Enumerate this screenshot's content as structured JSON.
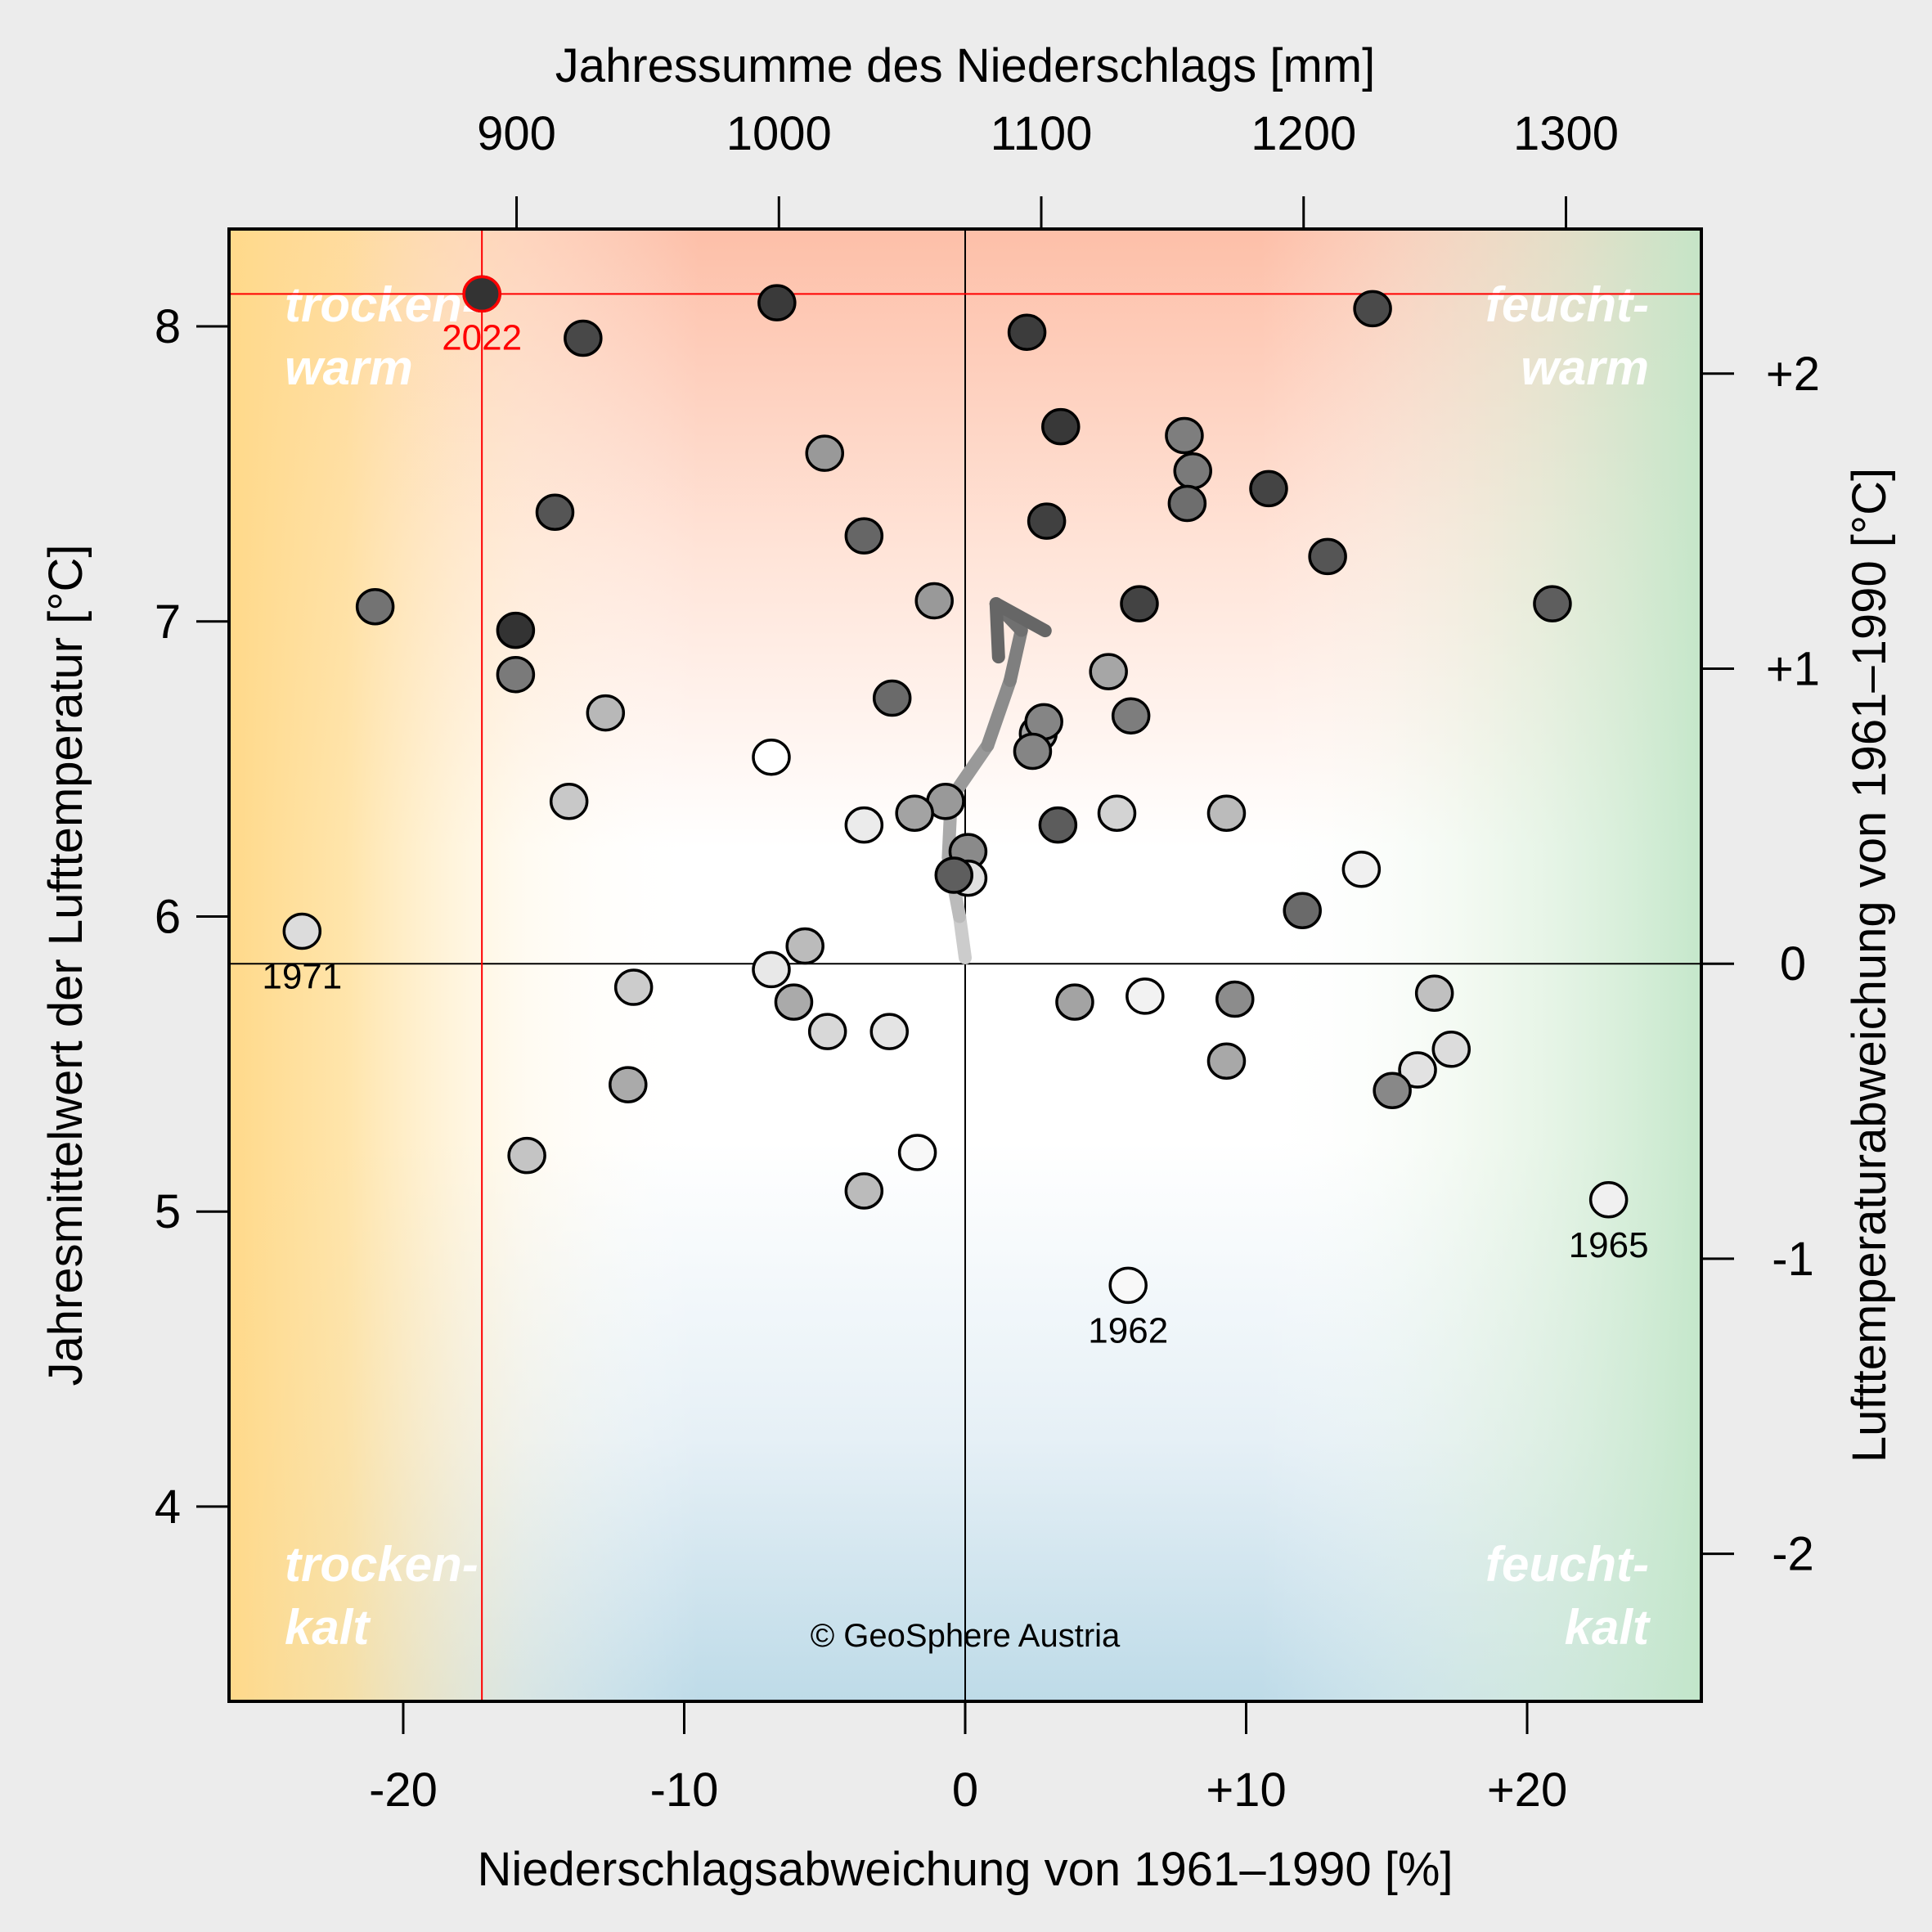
{
  "chart_data": {
    "type": "scatter",
    "xlabel_bottom": "Niederschlagsabweichung von 1961–1990 [%]",
    "xlabel_top": "Jahressumme des Niederschlags [mm]",
    "ylabel_left": "Jahresmittelwert der Lufttemperatur [°C]",
    "ylabel_right": "Lufttemperaturabweichung von 1961–1990 [°C]",
    "xlim": [
      -26.2,
      26.2
    ],
    "ylim": [
      3.34,
      8.33
    ],
    "reference": {
      "precip_mm": 1071,
      "temp_c": 5.84
    },
    "x_ticks": [
      {
        "value": -20,
        "label": "-20"
      },
      {
        "value": -10,
        "label": "-10"
      },
      {
        "value": 0,
        "label": "0"
      },
      {
        "value": 10,
        "label": "+10"
      },
      {
        "value": 20,
        "label": "+20"
      }
    ],
    "y_ticks": [
      {
        "value": 4,
        "label": "4"
      },
      {
        "value": 5,
        "label": "5"
      },
      {
        "value": 6,
        "label": "6"
      },
      {
        "value": 7,
        "label": "7"
      },
      {
        "value": 8,
        "label": "8"
      }
    ],
    "top_ticks": [
      {
        "value": 900,
        "label": "900"
      },
      {
        "value": 1000,
        "label": "1000"
      },
      {
        "value": 1100,
        "label": "1100"
      },
      {
        "value": 1200,
        "label": "1200"
      },
      {
        "value": 1300,
        "label": "1300"
      }
    ],
    "right_ticks": [
      {
        "value": 2,
        "label": "+2"
      },
      {
        "value": 1,
        "label": "+1"
      },
      {
        "value": 0,
        "label": "0"
      },
      {
        "value": -1,
        "label": "-1"
      },
      {
        "value": -2,
        "label": "-2"
      }
    ],
    "quadrant_labels": {
      "top_left": [
        "trocken-",
        "warm"
      ],
      "top_right": [
        "feucht-",
        "warm"
      ],
      "bottom_left": [
        "trocken-",
        "kalt"
      ],
      "bottom_right": [
        "feucht-",
        "kalt"
      ]
    },
    "highlight": {
      "year": "2022",
      "x": -17.2,
      "y": 8.11,
      "color": "#ff0000"
    },
    "annotations": [
      {
        "year": "1971",
        "x": -23.6,
        "y": 5.95
      },
      {
        "year": "1965",
        "x": 22.9,
        "y": 5.04
      },
      {
        "year": "1962",
        "x": 5.8,
        "y": 4.75
      }
    ],
    "copyright": "© GeoSphere Austria",
    "points": [
      {
        "x": -17.2,
        "y": 8.11,
        "shade": "#333333"
      },
      {
        "x": -6.7,
        "y": 8.08,
        "shade": "#3a3a3a"
      },
      {
        "x": 2.2,
        "y": 7.98,
        "shade": "#3c3c3c"
      },
      {
        "x": 14.5,
        "y": 8.06,
        "shade": "#4a4a4a"
      },
      {
        "x": -13.6,
        "y": 7.96,
        "shade": "#484848"
      },
      {
        "x": 3.4,
        "y": 7.66,
        "shade": "#383838"
      },
      {
        "x": -5.0,
        "y": 7.57,
        "shade": "#999999"
      },
      {
        "x": 7.8,
        "y": 7.63,
        "shade": "#7e7e7e"
      },
      {
        "x": 8.1,
        "y": 7.51,
        "shade": "#7a7a7a"
      },
      {
        "x": 7.9,
        "y": 7.4,
        "shade": "#6e6e6e"
      },
      {
        "x": 10.8,
        "y": 7.45,
        "shade": "#444444"
      },
      {
        "x": -14.6,
        "y": 7.37,
        "shade": "#555555"
      },
      {
        "x": 2.9,
        "y": 7.34,
        "shade": "#404040"
      },
      {
        "x": -3.6,
        "y": 7.29,
        "shade": "#666666"
      },
      {
        "x": 12.9,
        "y": 7.22,
        "shade": "#555555"
      },
      {
        "x": -21.0,
        "y": 7.05,
        "shade": "#737373"
      },
      {
        "x": -1.1,
        "y": 7.07,
        "shade": "#999999"
      },
      {
        "x": 6.2,
        "y": 7.06,
        "shade": "#434343"
      },
      {
        "x": 20.9,
        "y": 7.06,
        "shade": "#5e5e5e"
      },
      {
        "x": -16.0,
        "y": 6.97,
        "shade": "#333333"
      },
      {
        "x": -16.0,
        "y": 6.82,
        "shade": "#7a7a7a"
      },
      {
        "x": 5.1,
        "y": 6.83,
        "shade": "#a6a6a6"
      },
      {
        "x": -2.6,
        "y": 6.74,
        "shade": "#6a6a6a"
      },
      {
        "x": -12.8,
        "y": 6.69,
        "shade": "#b8b8b8"
      },
      {
        "x": 5.9,
        "y": 6.68,
        "shade": "#7d7d7d"
      },
      {
        "x": 2.6,
        "y": 6.62,
        "shade": "#a3a3a3"
      },
      {
        "x": 2.8,
        "y": 6.66,
        "shade": "#858585"
      },
      {
        "x": 2.4,
        "y": 6.56,
        "shade": "#858585"
      },
      {
        "x": -6.9,
        "y": 6.54,
        "shade": "#ffffff"
      },
      {
        "x": -14.1,
        "y": 6.39,
        "shade": "#c8c8c8"
      },
      {
        "x": -0.7,
        "y": 6.39,
        "shade": "#999999"
      },
      {
        "x": -1.8,
        "y": 6.35,
        "shade": "#a3a3a3"
      },
      {
        "x": 5.4,
        "y": 6.35,
        "shade": "#d3d3d3"
      },
      {
        "x": 9.3,
        "y": 6.35,
        "shade": "#bbbbbb"
      },
      {
        "x": -3.6,
        "y": 6.31,
        "shade": "#ebebeb"
      },
      {
        "x": 3.3,
        "y": 6.31,
        "shade": "#5c5c5c"
      },
      {
        "x": 0.1,
        "y": 6.22,
        "shade": "#8a8a8a"
      },
      {
        "x": 0.1,
        "y": 6.13,
        "shade": "#e0e0e0"
      },
      {
        "x": -0.4,
        "y": 6.14,
        "shade": "#5e5e5e"
      },
      {
        "x": 14.1,
        "y": 6.16,
        "shade": "#f0f0f0"
      },
      {
        "x": 12.0,
        "y": 6.02,
        "shade": "#6a6a6a"
      },
      {
        "x": -23.6,
        "y": 5.95,
        "shade": "#dcdcdc"
      },
      {
        "x": -5.7,
        "y": 5.9,
        "shade": "#bbbbbb"
      },
      {
        "x": -6.9,
        "y": 5.82,
        "shade": "#e8e8e8"
      },
      {
        "x": -11.8,
        "y": 5.76,
        "shade": "#cccccc"
      },
      {
        "x": -6.1,
        "y": 5.71,
        "shade": "#aaaaaa"
      },
      {
        "x": 3.9,
        "y": 5.71,
        "shade": "#a3a3a3"
      },
      {
        "x": 6.4,
        "y": 5.73,
        "shade": "#f2f2f2"
      },
      {
        "x": 9.6,
        "y": 5.72,
        "shade": "#8c8c8c"
      },
      {
        "x": 16.7,
        "y": 5.74,
        "shade": "#c0c0c0"
      },
      {
        "x": -4.9,
        "y": 5.61,
        "shade": "#d8d8d8"
      },
      {
        "x": -2.7,
        "y": 5.61,
        "shade": "#e4e4e4"
      },
      {
        "x": 9.3,
        "y": 5.51,
        "shade": "#a8a8a8"
      },
      {
        "x": 17.3,
        "y": 5.55,
        "shade": "#dcdcdc"
      },
      {
        "x": 16.1,
        "y": 5.48,
        "shade": "#e2e2e2"
      },
      {
        "x": 15.2,
        "y": 5.41,
        "shade": "#888888"
      },
      {
        "x": -12.0,
        "y": 5.43,
        "shade": "#aaaaaa"
      },
      {
        "x": -15.6,
        "y": 5.19,
        "shade": "#c4c4c4"
      },
      {
        "x": -1.7,
        "y": 5.2,
        "shade": "#f8f8f8"
      },
      {
        "x": -3.6,
        "y": 5.07,
        "shade": "#bbbbbb"
      },
      {
        "x": 22.9,
        "y": 5.04,
        "shade": "#f0f0f0"
      },
      {
        "x": 5.8,
        "y": 4.75,
        "shade": "#f8f8f8"
      }
    ],
    "trend_path": [
      {
        "x": 0.0,
        "y": 5.86
      },
      {
        "x": -0.2,
        "y": 6.0
      },
      {
        "x": -0.6,
        "y": 6.2
      },
      {
        "x": -0.5,
        "y": 6.4
      },
      {
        "x": 0.8,
        "y": 6.58
      },
      {
        "x": 1.6,
        "y": 6.8
      },
      {
        "x": 2.0,
        "y": 6.97
      },
      {
        "x": 1.1,
        "y": 7.06
      }
    ]
  }
}
